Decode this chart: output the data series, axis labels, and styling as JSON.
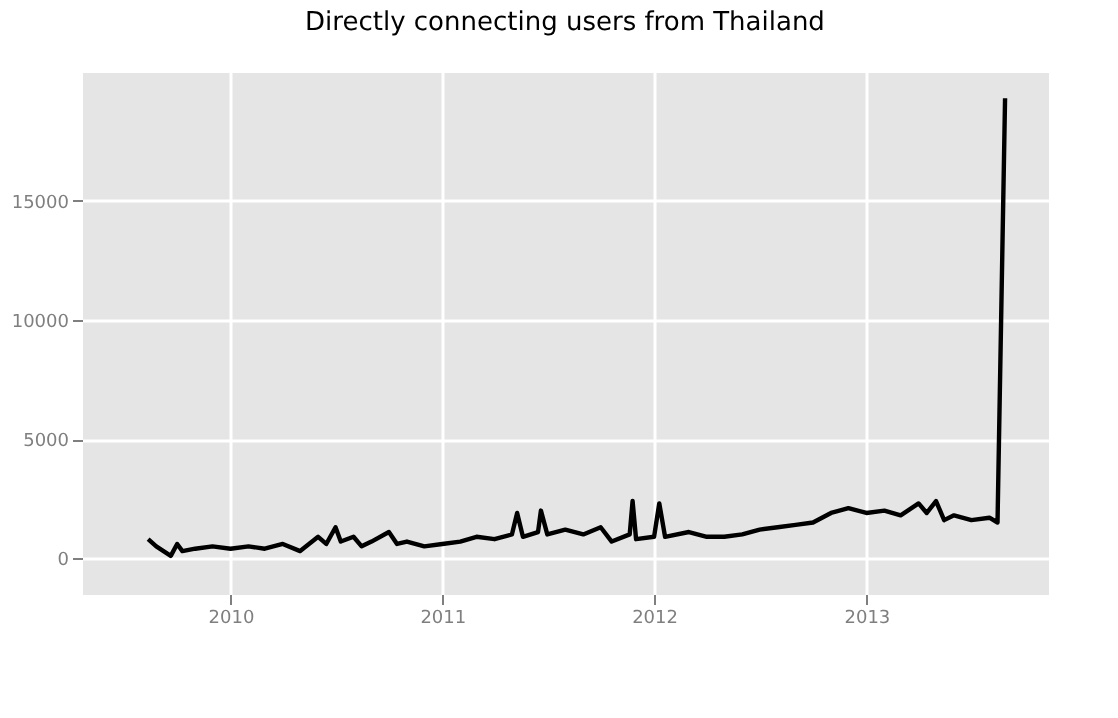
{
  "chart_data": {
    "type": "line",
    "title": "Directly connecting users from Thailand",
    "x": [
      "2009-08-12",
      "2009-08-26",
      "2009-09-20",
      "2009-10-01",
      "2009-10-10",
      "2009-11-01",
      "2009-12-01",
      "2010-01-01",
      "2010-02-01",
      "2010-03-01",
      "2010-04-01",
      "2010-05-01",
      "2010-06-01",
      "2010-06-15",
      "2010-07-01",
      "2010-07-10",
      "2010-08-01",
      "2010-08-15",
      "2010-09-01",
      "2010-10-01",
      "2010-10-15",
      "2010-11-01",
      "2010-12-01",
      "2011-01-01",
      "2011-02-01",
      "2011-03-01",
      "2011-04-01",
      "2011-05-01",
      "2011-05-10",
      "2011-05-20",
      "2011-06-15",
      "2011-06-20",
      "2011-07-01",
      "2011-08-01",
      "2011-09-01",
      "2011-10-01",
      "2011-10-20",
      "2011-11-20",
      "2011-11-25",
      "2011-12-01",
      "2012-01-01",
      "2012-01-10",
      "2012-01-20",
      "2012-03-01",
      "2012-04-01",
      "2012-05-01",
      "2012-06-01",
      "2012-07-01",
      "2012-08-01",
      "2012-09-01",
      "2012-10-01",
      "2012-11-01",
      "2012-12-01",
      "2013-01-01",
      "2013-02-01",
      "2013-03-01",
      "2013-04-01",
      "2013-04-15",
      "2013-05-01",
      "2013-05-15",
      "2013-06-01",
      "2013-07-01",
      "2013-08-01",
      "2013-08-15",
      "2013-08-28"
    ],
    "series": [
      {
        "color": "#000000",
        "values": [
          800,
          500,
          100,
          600,
          300,
          400,
          500,
          400,
          500,
          400,
          600,
          300,
          900,
          600,
          1300,
          700,
          900,
          500,
          700,
          1100,
          600,
          700,
          500,
          600,
          700,
          900,
          800,
          1000,
          1900,
          900,
          1100,
          2000,
          1000,
          1200,
          1000,
          1300,
          700,
          1000,
          2400,
          800,
          900,
          2300,
          900,
          1100,
          900,
          900,
          1000,
          1200,
          1300,
          1400,
          1500,
          1900,
          2100,
          1900,
          2000,
          1800,
          2300,
          1900,
          2400,
          1600,
          1800,
          1600,
          1700,
          1500,
          19300
        ]
      }
    ],
    "xlim": [
      "2009-04-20",
      "2013-11-10"
    ],
    "xticks": [
      {
        "value": "2010-01-01",
        "label": "2010"
      },
      {
        "value": "2011-01-01",
        "label": "2011"
      },
      {
        "value": "2012-01-01",
        "label": "2012"
      },
      {
        "value": "2013-01-01",
        "label": "2013"
      }
    ],
    "ylim": [
      -1500,
      20400
    ],
    "yticks": [
      0,
      5000,
      10000,
      15000
    ],
    "grid": true,
    "marker": "none",
    "line_style": "solid"
  }
}
